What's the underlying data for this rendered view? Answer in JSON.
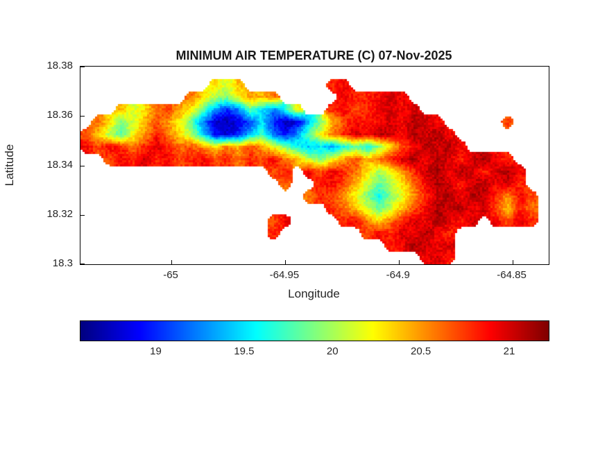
{
  "figure": {
    "title": "MINIMUM AIR TEMPERATURE (C) 07-Nov-2025",
    "xlabel": "Longitude",
    "ylabel": "Latitude"
  },
  "chart_data": {
    "type": "heatmap",
    "title": "MINIMUM AIR TEMPERATURE (C) 07-Nov-2025",
    "xlabel": "Longitude",
    "ylabel": "Latitude",
    "colormap": "jet",
    "units": "C",
    "xlim": [
      -65.04,
      -64.834
    ],
    "ylim": [
      18.3,
      18.38
    ],
    "clim": [
      18.57,
      21.22
    ],
    "x_ticks": [
      -65,
      -64.95,
      -64.9,
      -64.85
    ],
    "x_tick_labels": [
      "-65",
      "-64.95",
      "-64.9",
      "-64.85"
    ],
    "y_ticks": [
      18.3,
      18.32,
      18.34,
      18.36,
      18.38
    ],
    "y_tick_labels": [
      "18.3",
      "18.32",
      "18.34",
      "18.36",
      "18.38"
    ],
    "colorbar": {
      "orientation": "horizontal",
      "ticks": [
        19,
        19.5,
        20,
        20.5,
        21
      ],
      "tick_labels": [
        "19",
        "19.5",
        "20",
        "20.5",
        "21"
      ]
    },
    "grid": {
      "lon_start": -65.04,
      "lon_step": 0.00515,
      "lat_start": 18.38,
      "lat_step": -0.005,
      "values": [
        [
          null,
          null,
          null,
          null,
          null,
          null,
          null,
          null,
          null,
          null,
          null,
          null,
          null,
          null,
          null,
          null,
          null,
          null,
          null,
          null,
          null,
          null,
          null,
          null,
          null,
          null,
          null,
          null,
          null,
          null,
          null,
          null,
          null,
          null,
          null,
          null,
          null,
          null,
          null,
          null
        ],
        [
          null,
          null,
          null,
          null,
          null,
          null,
          null,
          null,
          null,
          null,
          null,
          20.3,
          20.1,
          20.4,
          null,
          null,
          null,
          null,
          null,
          null,
          null,
          20.8,
          20.9,
          null,
          null,
          null,
          null,
          null,
          null,
          null,
          null,
          null,
          null,
          null,
          null,
          null,
          null,
          null,
          null,
          null
        ],
        [
          null,
          null,
          null,
          null,
          null,
          null,
          null,
          null,
          null,
          20.6,
          20.3,
          20.0,
          19.9,
          20.2,
          20.5,
          20.4,
          20.6,
          null,
          null,
          null,
          null,
          null,
          20.9,
          20.8,
          20.8,
          20.9,
          21.0,
          20.9,
          null,
          null,
          null,
          null,
          null,
          null,
          null,
          null,
          null,
          null,
          null,
          null
        ],
        [
          null,
          null,
          null,
          20.4,
          20.1,
          20.3,
          20.6,
          20.7,
          20.5,
          20.2,
          19.8,
          19.3,
          19.0,
          19.2,
          19.8,
          19.5,
          19.2,
          19.6,
          20.2,
          null,
          null,
          20.8,
          20.9,
          20.7,
          20.8,
          20.9,
          21.0,
          20.9,
          21.0,
          null,
          null,
          null,
          null,
          null,
          null,
          null,
          null,
          null,
          null,
          null
        ],
        [
          null,
          20.6,
          20.3,
          19.9,
          20.1,
          20.4,
          20.7,
          20.5,
          20.2,
          19.8,
          19.2,
          18.8,
          18.7,
          18.8,
          19.1,
          19.5,
          19.0,
          18.7,
          18.8,
          19.4,
          19.9,
          20.4,
          20.7,
          20.9,
          20.8,
          20.9,
          21.0,
          20.9,
          21.1,
          21.0,
          20.9,
          null,
          null,
          null,
          null,
          null,
          20.7,
          null,
          null,
          null
        ],
        [
          20.7,
          20.4,
          20.0,
          19.8,
          20.2,
          20.5,
          20.8,
          20.6,
          20.3,
          20.0,
          19.5,
          18.9,
          18.8,
          19.0,
          19.4,
          19.7,
          19.2,
          18.9,
          19.3,
          19.8,
          20.2,
          20.6,
          20.8,
          21.0,
          20.9,
          21.1,
          21.0,
          20.9,
          21.1,
          21.0,
          21.1,
          20.9,
          null,
          null,
          null,
          null,
          null,
          null,
          null,
          null
        ],
        [
          20.9,
          20.7,
          20.9,
          20.8,
          20.6,
          20.8,
          21.0,
          20.8,
          20.6,
          20.7,
          20.5,
          20.3,
          20.6,
          20.4,
          20.7,
          20.5,
          20.2,
          19.9,
          19.6,
          19.4,
          19.5,
          19.3,
          19.6,
          19.8,
          19.6,
          19.9,
          20.3,
          20.7,
          20.9,
          21.1,
          21.0,
          21.1,
          20.9,
          null,
          null,
          null,
          null,
          null,
          null,
          null
        ],
        [
          null,
          null,
          20.7,
          20.9,
          20.8,
          21.0,
          20.8,
          20.9,
          20.7,
          20.8,
          20.9,
          20.7,
          20.8,
          20.6,
          20.8,
          20.7,
          20.9,
          20.6,
          20.4,
          20.1,
          19.9,
          20.2,
          20.5,
          20.7,
          20.4,
          20.6,
          20.8,
          21.0,
          21.1,
          20.9,
          21.1,
          21.0,
          20.8,
          21.0,
          21.1,
          20.9,
          20.8,
          null,
          null,
          null
        ],
        [
          null,
          null,
          null,
          null,
          null,
          null,
          null,
          null,
          null,
          null,
          null,
          null,
          null,
          null,
          null,
          null,
          20.7,
          20.8,
          null,
          20.9,
          20.7,
          20.9,
          20.8,
          20.6,
          20.3,
          20.0,
          20.2,
          20.5,
          20.8,
          21.0,
          21.1,
          20.9,
          21.1,
          21.0,
          20.8,
          21.0,
          21.1,
          20.9,
          null,
          null
        ],
        [
          null,
          null,
          null,
          null,
          null,
          null,
          null,
          null,
          null,
          null,
          null,
          null,
          null,
          null,
          null,
          null,
          null,
          20.6,
          null,
          null,
          20.8,
          20.9,
          20.7,
          20.4,
          20.1,
          19.8,
          20.0,
          20.3,
          20.6,
          20.9,
          21.1,
          21.0,
          20.8,
          21.0,
          21.1,
          20.9,
          21.0,
          20.8,
          null,
          null
        ],
        [
          null,
          null,
          null,
          null,
          null,
          null,
          null,
          null,
          null,
          null,
          null,
          null,
          null,
          null,
          null,
          null,
          null,
          null,
          null,
          20.6,
          20.8,
          20.7,
          20.5,
          20.2,
          19.9,
          19.6,
          19.9,
          20.2,
          20.5,
          20.8,
          21.0,
          21.1,
          20.9,
          21.1,
          21.0,
          20.8,
          20.5,
          20.9,
          20.7,
          null
        ],
        [
          null,
          null,
          null,
          null,
          null,
          null,
          null,
          null,
          null,
          null,
          null,
          null,
          null,
          null,
          null,
          null,
          null,
          null,
          null,
          null,
          null,
          20.8,
          20.6,
          20.4,
          20.1,
          19.8,
          20.1,
          20.4,
          20.7,
          20.9,
          21.1,
          21.0,
          21.1,
          20.9,
          21.0,
          20.7,
          20.4,
          20.8,
          20.6,
          null
        ],
        [
          null,
          null,
          null,
          null,
          null,
          null,
          null,
          null,
          null,
          null,
          null,
          null,
          null,
          null,
          null,
          null,
          20.7,
          20.9,
          null,
          null,
          null,
          null,
          20.8,
          20.9,
          20.6,
          20.3,
          20.6,
          20.8,
          21.0,
          20.9,
          21.1,
          21.0,
          20.8,
          21.0,
          null,
          20.9,
          20.7,
          21.0,
          20.8,
          null
        ],
        [
          null,
          null,
          null,
          null,
          null,
          null,
          null,
          null,
          null,
          null,
          null,
          null,
          null,
          null,
          null,
          null,
          20.8,
          null,
          null,
          null,
          null,
          null,
          null,
          null,
          20.7,
          20.9,
          20.8,
          21.0,
          20.9,
          21.1,
          20.9,
          20.8,
          null,
          null,
          null,
          null,
          null,
          null,
          null,
          null
        ],
        [
          null,
          null,
          null,
          null,
          null,
          null,
          null,
          null,
          null,
          null,
          null,
          null,
          null,
          null,
          null,
          null,
          null,
          null,
          null,
          null,
          null,
          null,
          null,
          null,
          null,
          null,
          20.8,
          20.9,
          21.1,
          21.0,
          20.9,
          21.0,
          null,
          null,
          null,
          null,
          null,
          null,
          null,
          null
        ],
        [
          null,
          null,
          null,
          null,
          null,
          null,
          null,
          null,
          null,
          null,
          null,
          null,
          null,
          null,
          null,
          null,
          null,
          null,
          null,
          null,
          null,
          null,
          null,
          null,
          null,
          null,
          null,
          null,
          null,
          20.9,
          21.0,
          20.8,
          null,
          null,
          null,
          null,
          null,
          null,
          null,
          null
        ]
      ]
    }
  }
}
